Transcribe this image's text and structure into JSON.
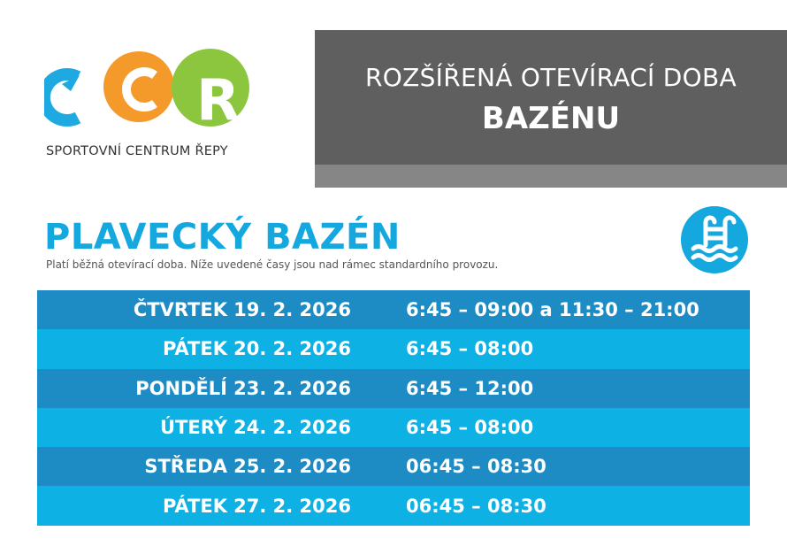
{
  "logo": {
    "letters": "SCR",
    "caption": "SPORTOVNÍ CENTRUM ŘEPY",
    "colors": [
      "#1ea9e1",
      "#f39a2b",
      "#8cc63f"
    ]
  },
  "header": {
    "line1": "ROZŠÍŘENÁ OTEVÍRACÍ DOBA",
    "line2": "BAZÉNU"
  },
  "section": {
    "title": "PLAVECKÝ BAZÉN",
    "subtitle": "Platí běžná otevírací doba. Níže uvedené časy jsou nad rámec standardního provozu.",
    "icon": "swimming-pool-ladder-icon"
  },
  "schedule": [
    {
      "day": "ČTVRTEK",
      "date": "19. 2. 2026",
      "time": "6:45 – 09:00 a 11:30 – 21:00"
    },
    {
      "day": "PÁTEK",
      "date": "20. 2. 2026",
      "time": "6:45 – 08:00"
    },
    {
      "day": "PONDĚLÍ",
      "date": "23. 2. 2026",
      "time": "6:45 – 12:00"
    },
    {
      "day": "ÚTERÝ",
      "date": "24. 2. 2026",
      "time": "6:45 – 08:00"
    },
    {
      "day": "STŘEDA",
      "date": "25. 2. 2026",
      "time": "06:45 – 08:30"
    },
    {
      "day": "PÁTEK",
      "date": "27. 2. 2026",
      "time": "06:45 – 08:30"
    }
  ],
  "colors": {
    "accent": "#14a8df",
    "row_dark": "#1d8cc4",
    "row_light": "#0db1e4",
    "header_bg": "#5f5f5f"
  }
}
